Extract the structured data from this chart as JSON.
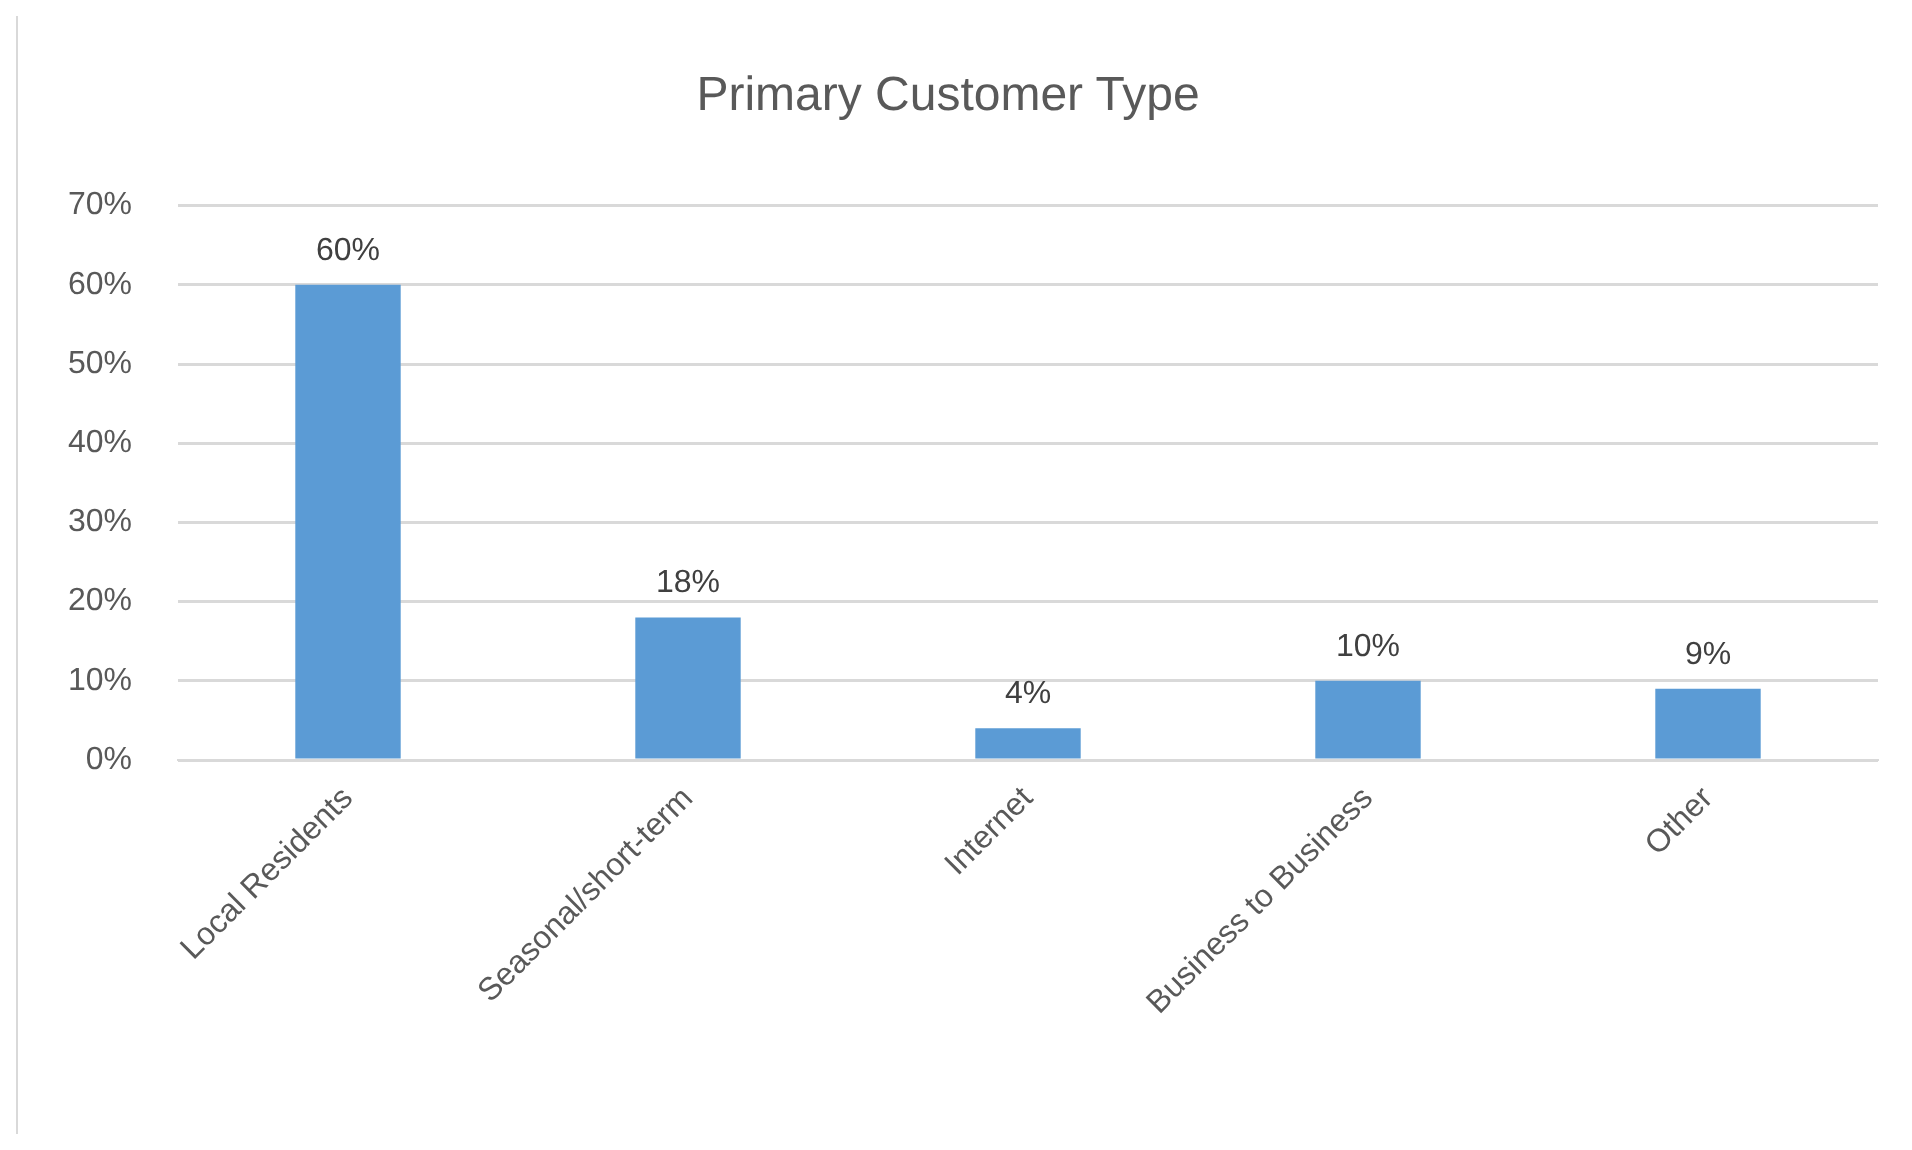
{
  "chart_data": {
    "type": "bar",
    "title": "Primary Customer Type",
    "categories": [
      "Local Residents",
      "Seasonal/short-term",
      "Internet",
      "Business to Business",
      "Other"
    ],
    "values": [
      60,
      18,
      4,
      10,
      9
    ],
    "color": "#5b9bd5",
    "value_labels": [
      "60%",
      "18%",
      "4%",
      "10%",
      "9%"
    ],
    "ylim": [
      0,
      70
    ],
    "yticks": [
      {
        "value": 0,
        "label": "0%"
      },
      {
        "value": 10,
        "label": "10%"
      },
      {
        "value": 20,
        "label": "20%"
      },
      {
        "value": 30,
        "label": "30%"
      },
      {
        "value": 40,
        "label": "40%"
      },
      {
        "value": 50,
        "label": "50%"
      },
      {
        "value": 60,
        "label": "60%"
      },
      {
        "value": 70,
        "label": "70%"
      }
    ],
    "grid": "y"
  }
}
